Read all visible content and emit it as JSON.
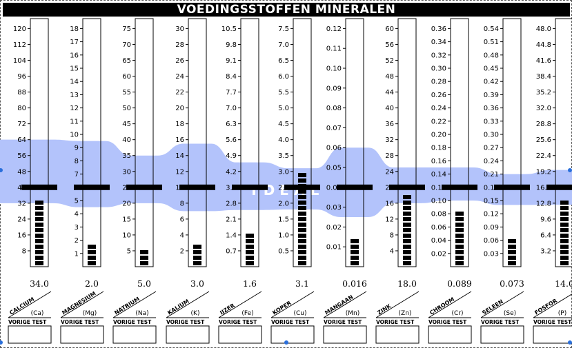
{
  "header": {
    "title": "VOEDINGSSTOFFEN MINERALEN"
  },
  "ideal_text": "IDEAL",
  "previous_test_label": "VORIGE TEST",
  "colors": {
    "band": "#b3c3fb",
    "bar": "#000000",
    "background": "#ffffff",
    "handle": "#2a6fdb"
  },
  "chart_data": {
    "type": "bar",
    "title": "VOEDINGSSTOFFEN MINERALEN",
    "categories": [
      "CALCIUM",
      "MAGNESIUM",
      "NATRIUM",
      "KALIUM",
      "IJZER",
      "KOPER",
      "MANGAAN",
      "ZINK",
      "CHROOM",
      "SELEEN",
      "FOSFOR"
    ],
    "symbols": [
      "(Ca)",
      "(Mg)",
      "(Na)",
      "(K)",
      "(Fe)",
      "(Cu)",
      "(Mn)",
      "(Zn)",
      "(Cr)",
      "(Se)",
      "(P)"
    ],
    "values": [
      34.0,
      2.0,
      5.0,
      3.0,
      1.6,
      3.1,
      0.016,
      18.0,
      0.089,
      0.073,
      14.0
    ],
    "value_labels": [
      "34.0",
      "2.0",
      "5.0",
      "3.0",
      "1.6",
      "3.1",
      "0.016",
      "18.0",
      "0.089",
      "0.073",
      "14.0"
    ],
    "ideal_markers": [
      40,
      6,
      25,
      10,
      3.5,
      2.5,
      0.04,
      20,
      0.12,
      0.18,
      16.0
    ],
    "ideal_band": [
      [
        32,
        64
      ],
      [
        4.5,
        9.5
      ],
      [
        20,
        35
      ],
      [
        7,
        15.5
      ],
      [
        2.5,
        4.6
      ],
      [
        1.8,
        3.1
      ],
      [
        0.025,
        0.06
      ],
      [
        16,
        25
      ],
      [
        0.1,
        0.15
      ],
      [
        0.14,
        0.21
      ],
      [
        12.5,
        19.5
      ]
    ],
    "ylim": [
      [
        0,
        125
      ],
      [
        0,
        18.75
      ],
      [
        0,
        78.125
      ],
      [
        0,
        31.25
      ],
      [
        0,
        10.9375
      ],
      [
        0,
        7.8125
      ],
      [
        0,
        0.125
      ],
      [
        0,
        62.5
      ],
      [
        0,
        0.375
      ],
      [
        0,
        0.5625
      ],
      [
        0,
        50
      ]
    ],
    "ticks": [
      [
        "8",
        "16",
        "24",
        "32",
        "40",
        "48",
        "56",
        "64",
        "72",
        "80",
        "88",
        "96",
        "104",
        "112",
        "120"
      ],
      [
        "1",
        "2",
        "3",
        "4",
        "5",
        "6",
        "7",
        "8",
        "9",
        "10",
        "11",
        "12",
        "13",
        "14",
        "15",
        "16",
        "17",
        "18"
      ],
      [
        "5",
        "10",
        "15",
        "20",
        "25",
        "30",
        "35",
        "40",
        "45",
        "50",
        "55",
        "60",
        "65",
        "70",
        "75"
      ],
      [
        "2",
        "4",
        "6",
        "8",
        "10",
        "12",
        "14",
        "16",
        "18",
        "20",
        "22",
        "24",
        "26",
        "28",
        "30"
      ],
      [
        "0.7",
        "1.4",
        "2.1",
        "2.8",
        "3.5",
        "4.2",
        "4.9",
        "5.6",
        "6.3",
        "7.0",
        "7.7",
        "8.4",
        "9.1",
        "9.8",
        "10.5"
      ],
      [
        "0.5",
        "1.0",
        "1.5",
        "2.0",
        "2.5",
        "3.0",
        "3.5",
        "4.0",
        "4.5",
        "5.0",
        "5.5",
        "6.0",
        "6.5",
        "7.0",
        "7.5"
      ],
      [
        "0.01",
        "0.02",
        "0.03",
        "0.04",
        "0.05",
        "0.06",
        "0.07",
        "0.08",
        "0.09",
        "0.10",
        "0.11",
        "0.12"
      ],
      [
        "4",
        "8",
        "12",
        "16",
        "20",
        "24",
        "28",
        "32",
        "36",
        "40",
        "44",
        "48",
        "52",
        "56",
        "60"
      ],
      [
        "0.02",
        "0.04",
        "0.06",
        "0.08",
        "0.10",
        "0.12",
        "0.14",
        "0.16",
        "0.18",
        "0.20",
        "0.22",
        "0.24",
        "0.26",
        "0.28",
        "0.30",
        "0.32",
        "0.34",
        "0.36"
      ],
      [
        "0.03",
        "0.06",
        "0.09",
        "0.12",
        "0.15",
        "0.18",
        "0.21",
        "0.24",
        "0.27",
        "0.30",
        "0.33",
        "0.36",
        "0.39",
        "0.42",
        "0.45",
        "0.48",
        "0.51",
        "0.54"
      ],
      [
        "3.2",
        "6.4",
        "9.6",
        "12.8",
        "16.0",
        "19.2",
        "22.4",
        "25.6",
        "28.8",
        "32.0",
        "35.2",
        "38.4",
        "41.6",
        "44.8",
        "48.0"
      ]
    ],
    "grid": false,
    "legend": "none"
  }
}
